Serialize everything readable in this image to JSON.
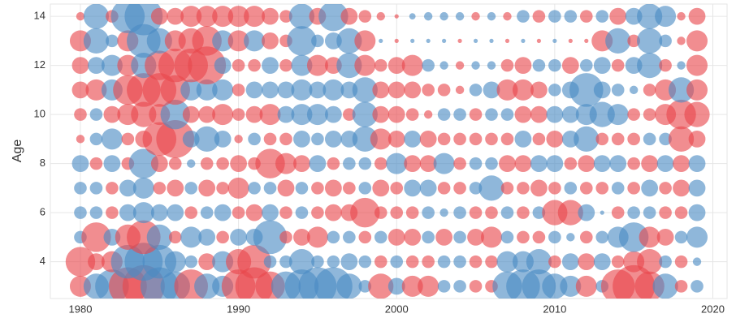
{
  "chart_data": {
    "type": "bubble",
    "ylabel": "Age",
    "x": [
      1980,
      1981,
      1982,
      1983,
      1984,
      1985,
      1986,
      1987,
      1988,
      1989,
      1990,
      1991,
      1992,
      1993,
      1994,
      1995,
      1996,
      1997,
      1998,
      1999,
      2000,
      2001,
      2002,
      2003,
      2004,
      2005,
      2006,
      2007,
      2008,
      2009,
      2010,
      2011,
      2012,
      2013,
      2014,
      2015,
      2016,
      2017,
      2018,
      2019
    ],
    "y": [
      3,
      4,
      5,
      6,
      7,
      8,
      9,
      10,
      11,
      12,
      13,
      14
    ],
    "values": [
      [
        5,
        -6,
        -8,
        9,
        10,
        -9,
        -7,
        8,
        -6,
        -5,
        8,
        9,
        7,
        -7,
        -8,
        -9,
        -9,
        -6,
        -3,
        6,
        -4,
        5,
        5,
        -3,
        -3,
        3,
        3,
        -7,
        -8,
        -8,
        -6,
        -5,
        5,
        -3,
        8,
        10,
        7,
        -6,
        3,
        -3
      ],
      [
        7,
        4,
        5,
        -8,
        -9,
        -8,
        -5,
        -3,
        4,
        -5,
        6,
        8,
        -3,
        -3,
        -6,
        -3,
        -3,
        -4,
        -3,
        3,
        -3,
        3,
        3,
        -3,
        -3,
        3,
        3,
        -5,
        -5,
        -6,
        3,
        -4,
        4,
        -4,
        3,
        5,
        6,
        -3,
        3,
        -2
      ],
      [
        -3,
        7,
        -4,
        6,
        8,
        -6,
        3,
        -5,
        -4,
        3,
        -4,
        -4,
        -8,
        3,
        4,
        5,
        -3,
        -3,
        3,
        -3,
        4,
        4,
        -3,
        4,
        -3,
        4,
        5,
        -3,
        3,
        3,
        -3,
        -2,
        3,
        -3,
        -5,
        -7,
        5,
        4,
        -3,
        -5
      ],
      [
        -3,
        -3,
        3,
        -4,
        -5,
        -4,
        -4,
        3,
        -3,
        -4,
        3,
        4,
        -4,
        3,
        -3,
        3,
        4,
        4,
        7,
        3,
        3,
        3,
        -3,
        -2,
        -3,
        3,
        3,
        -3,
        3,
        -3,
        6,
        6,
        -4,
        -1,
        3,
        -3,
        -3,
        3,
        3,
        -4
      ],
      [
        -3,
        -3,
        3,
        -4,
        -5,
        3,
        4,
        -3,
        4,
        3,
        5,
        -3,
        -3,
        4,
        -3,
        3,
        4,
        3,
        -3,
        4,
        3,
        -4,
        -4,
        3,
        3,
        -3,
        -6,
        3,
        3,
        4,
        3,
        -3,
        3,
        3,
        -3,
        3,
        -4,
        3,
        4,
        -4
      ],
      [
        -4,
        3,
        -4,
        3,
        -7,
        4,
        3,
        -2,
        3,
        3,
        4,
        3,
        7,
        5,
        4,
        -4,
        3,
        -3,
        -3,
        3,
        -5,
        4,
        4,
        -5,
        3,
        -3,
        -3,
        4,
        4,
        -4,
        -4,
        3,
        4,
        -4,
        -4,
        3,
        4,
        -4,
        4,
        -4
      ],
      [
        2,
        -3,
        -5,
        3,
        4,
        8,
        9,
        -4,
        -6,
        -4,
        2,
        -3,
        3,
        3,
        -4,
        -3,
        -4,
        -4,
        -6,
        5,
        4,
        -4,
        4,
        3,
        3,
        3,
        3,
        3,
        -4,
        3,
        4,
        -4,
        -6,
        3,
        3,
        3,
        -3,
        -3,
        6,
        4
      ],
      [
        3,
        -3,
        4,
        5,
        6,
        5,
        -7,
        4,
        4,
        5,
        3,
        4,
        5,
        -4,
        -5,
        -5,
        -4,
        3,
        -6,
        4,
        4,
        3,
        2,
        -3,
        -3,
        3,
        -3,
        -3,
        4,
        4,
        -4,
        -4,
        -5,
        -6,
        -5,
        3,
        3,
        5,
        7,
        6
      ],
      [
        4,
        5,
        -5,
        7,
        8,
        8,
        7,
        -5,
        -5,
        -5,
        3,
        -4,
        -4,
        -4,
        -5,
        -4,
        -5,
        -4,
        -6,
        4,
        4,
        4,
        3,
        3,
        2,
        -3,
        -4,
        5,
        5,
        4,
        -3,
        -4,
        -8,
        -4,
        -3,
        -2,
        3,
        5,
        -6,
        5
      ],
      [
        4,
        -4,
        -5,
        5,
        -6,
        7,
        8,
        8,
        9,
        -4,
        3,
        3,
        -4,
        3,
        -5,
        5,
        4,
        -6,
        5,
        3,
        4,
        5,
        -3,
        -2,
        2,
        -2,
        -2,
        3,
        4,
        -3,
        -3,
        4,
        -3,
        -4,
        3,
        -4,
        -6,
        3,
        -2,
        5
      ],
      [
        5,
        -6,
        -3,
        5,
        -8,
        -6,
        5,
        6,
        7,
        -5,
        5,
        -5,
        4,
        3,
        -7,
        -3,
        -4,
        -6,
        5,
        -1,
        1,
        -1,
        -1,
        -1,
        1,
        -1,
        -1,
        1,
        -1,
        1,
        -1,
        1,
        1,
        5,
        -6,
        3,
        -6,
        -3,
        2,
        5
      ],
      [
        2,
        -6,
        3,
        -8,
        -9,
        4,
        4,
        5,
        5,
        5,
        5,
        5,
        4,
        3,
        -6,
        4,
        -7,
        4,
        3,
        2,
        1,
        -1.5,
        -2,
        -2,
        -2,
        2,
        -2,
        2,
        -3,
        3,
        -3,
        -3,
        3,
        -3,
        4,
        -4,
        -6,
        -5,
        2,
        4
      ]
    ],
    "positive_color": "#e8474c",
    "negative_color": "#4a8ac4",
    "xlim": [
      1978.1,
      2020.9
    ],
    "ylim": [
      2.5,
      14.5
    ],
    "xticks": [
      1980,
      1990,
      2000,
      2010,
      2020
    ],
    "yticks": [
      4,
      6,
      8,
      10,
      12,
      14
    ],
    "grid": true
  }
}
